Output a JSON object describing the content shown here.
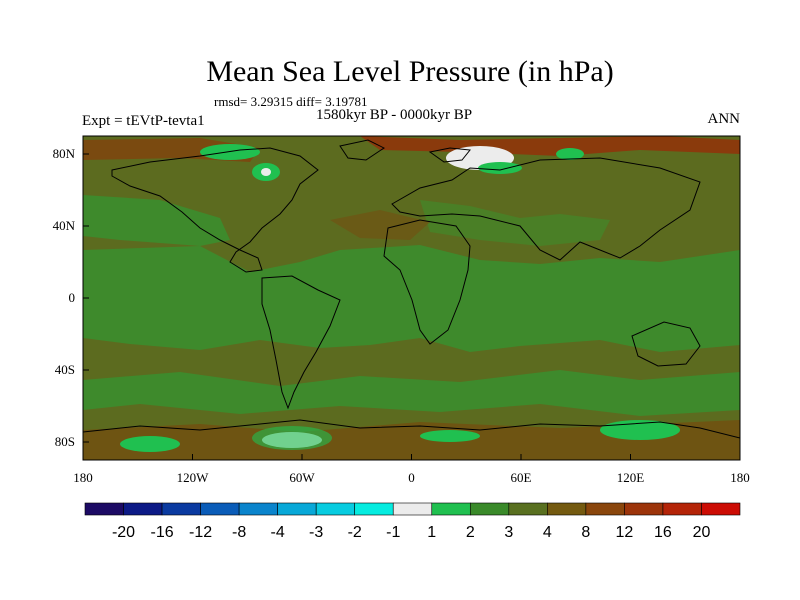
{
  "header": {
    "title": "Mean Sea Level Pressure (in hPa)",
    "stats": "rmsd= 3.29315 diff= 3.19781",
    "period": "1580kyr BP - 0000kyr BP",
    "experiment": "Expt = tEVtP-tevta1",
    "season": "ANN"
  },
  "map": {
    "lat_labels": [
      "80N",
      "40N",
      "0",
      "40S",
      "80S"
    ],
    "lat_values": [
      80,
      40,
      0,
      -40,
      -80
    ],
    "lon_labels": [
      "180",
      "120W",
      "60W",
      "0",
      "60E",
      "120E",
      "180"
    ],
    "lon_values": [
      -180,
      -120,
      -60,
      0,
      60,
      120,
      180
    ],
    "lon_range": [
      -180,
      180
    ],
    "lat_range": [
      -90,
      90
    ],
    "background_value_color": "#5b6b1e"
  },
  "colorbar": {
    "colors": [
      "#1c0a64",
      "#0c1a86",
      "#0a3aa0",
      "#0a5cb8",
      "#0a84cc",
      "#08a8d8",
      "#08cce0",
      "#06ece0",
      "#ececec",
      "#20c050",
      "#3a8a2a",
      "#597020",
      "#745a10",
      "#8a460c",
      "#9c340a",
      "#b42408",
      "#cc0c04"
    ],
    "labels": [
      "-20",
      "-16",
      "-12",
      "-8",
      "-4",
      "-3",
      "-2",
      "-1",
      "1",
      "2",
      "3",
      "4",
      "8",
      "12",
      "16",
      "20"
    ]
  }
}
